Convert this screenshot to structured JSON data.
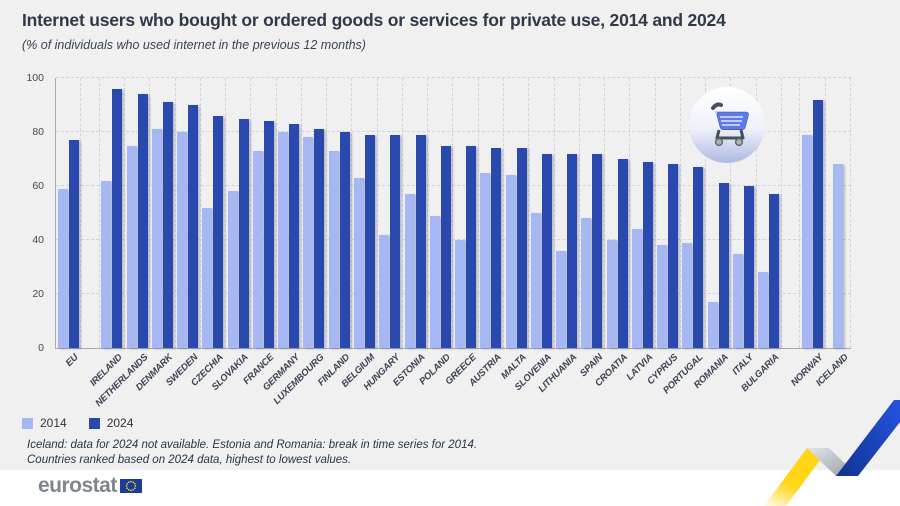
{
  "header": {
    "title": "Internet users who bought or ordered goods or services for private use, 2014 and 2024",
    "subtitle": "(% of individuals who used internet in the previous 12 months)"
  },
  "legend": {
    "items": [
      {
        "label": "2014",
        "color": "#a6b8f4"
      },
      {
        "label": "2024",
        "color": "#2a49ae"
      }
    ]
  },
  "footnotes": {
    "line1": "Iceland: data for 2024 not available. Estonia and Romania: break in time series for 2014.",
    "line2": "Countries ranked based on 2024 data, highest to lowest values."
  },
  "footer": {
    "brand": "eurostat"
  },
  "icons": {
    "cart": "shopping-cart-icon",
    "flag": "eu-flag-icon",
    "ribbon": "eurostat-ribbon-decoration"
  },
  "colors": {
    "background": "#f0f0f1",
    "series_2014": "#a6b8f4",
    "series_2024": "#2a49ae",
    "title_text": "#2f3949",
    "gridline": "#d3d3d7",
    "axis": "#a9a9af",
    "brand_gray": "#7d858d",
    "flag_blue": "#1b3c9b",
    "star_yellow": "#ffd617",
    "ribbon_yellow": "#ffd617",
    "ribbon_blue": "#1d47cf"
  },
  "chart_data": {
    "type": "bar",
    "title": "Internet users who bought or ordered goods or services for private use, 2014 and 2024",
    "subtitle": "(% of individuals who used internet in the previous 12 months)",
    "unit": "% of individuals",
    "categories": [
      "EU",
      "IRELAND",
      "NETHERLANDS",
      "DENMARK",
      "SWEDEN",
      "CZECHIA",
      "SLOVAKIA",
      "FRANCE",
      "GERMANY",
      "LUXEMBOURG",
      "FINLAND",
      "BELGIUM",
      "HUNGARY",
      "ESTONIA",
      "POLAND",
      "GREECE",
      "AUSTRIA",
      "MALTA",
      "SLOVENIA",
      "LITHUANIA",
      "SPAIN",
      "CROATIA",
      "LATVIA",
      "CYPRUS",
      "PORTUGAL",
      "ROMANIA",
      "ITALY",
      "BULGARIA",
      "NORWAY",
      "ICELAND"
    ],
    "series": [
      {
        "name": "2014",
        "values": [
          59,
          62,
          75,
          81,
          80,
          52,
          58,
          73,
          80,
          78,
          73,
          63,
          42,
          57,
          49,
          40,
          65,
          64,
          50,
          36,
          48,
          40,
          44,
          38,
          39,
          17,
          35,
          28,
          79,
          68
        ]
      },
      {
        "name": "2024",
        "values": [
          77,
          96,
          94,
          91,
          90,
          86,
          85,
          84,
          83,
          81,
          80,
          79,
          79,
          79,
          75,
          75,
          74,
          74,
          72,
          72,
          72,
          70,
          69,
          68,
          67,
          61,
          60,
          57,
          92,
          null
        ]
      }
    ],
    "gaps_after": [
      "EU",
      "BULGARIA"
    ],
    "ylim": [
      0,
      100
    ],
    "yticks": [
      0,
      20,
      40,
      60,
      80,
      100
    ],
    "grid": true,
    "legend_position": "bottom-left",
    "xlabel": "",
    "ylabel": ""
  }
}
